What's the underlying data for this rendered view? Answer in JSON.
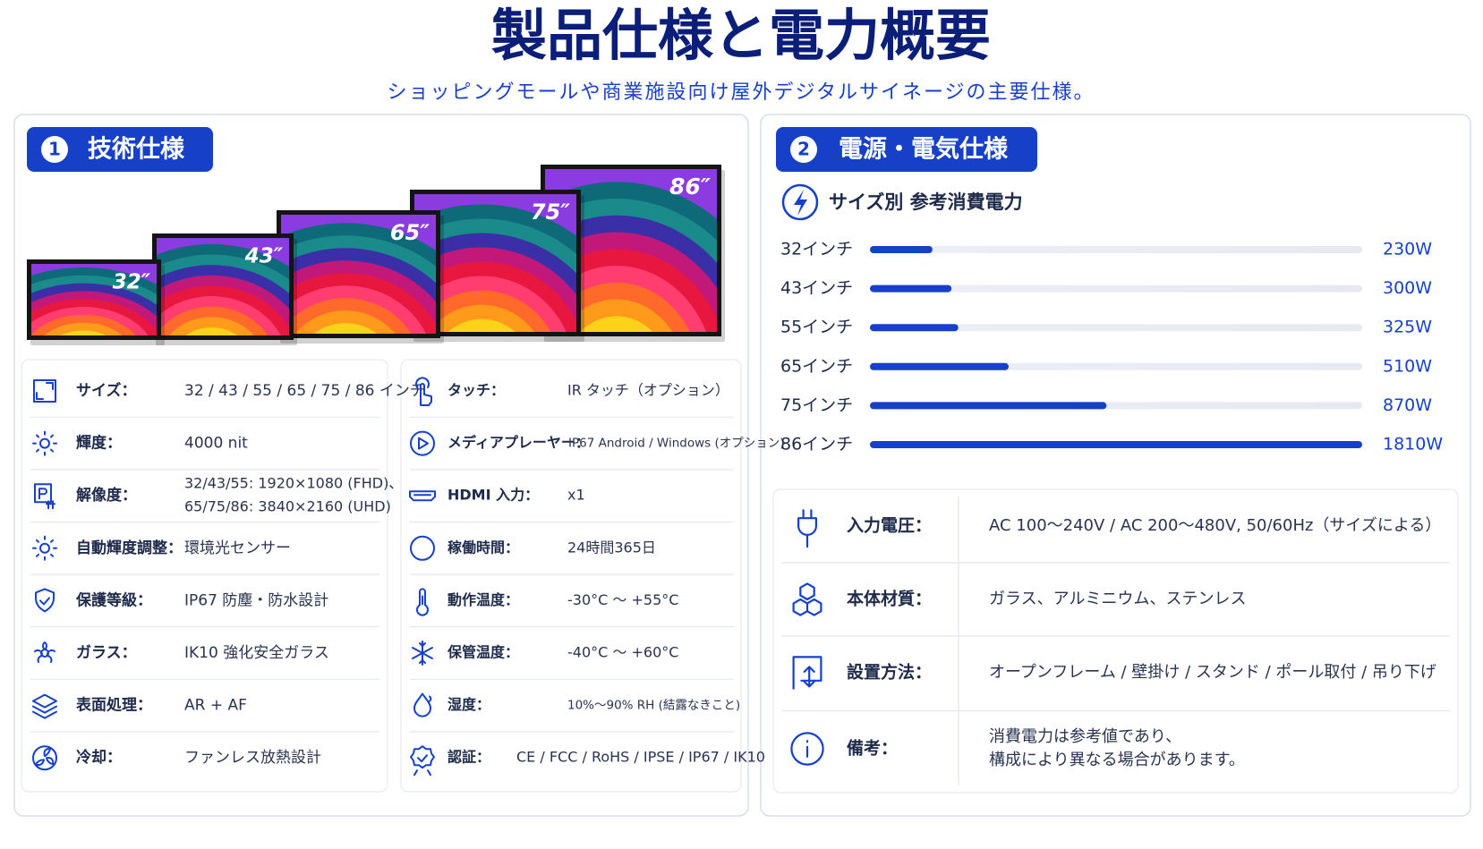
{
  "header": {
    "title": "製品仕様と電力概要",
    "subtitle": "ショッピングモールや商業施設向け屋外デジタルサイネージの主要仕様。"
  },
  "technical_specs": {
    "number": "1",
    "title": "技術仕様",
    "monitors": [
      "32″",
      "43″",
      "65″",
      "75″",
      "86″"
    ],
    "left_rows": [
      {
        "label": "サイズ：",
        "value": [
          "32 / 43 / 55 / 65 / 75 / 86 インチ"
        ]
      },
      {
        "label": "輝度：",
        "value": [
          "4000 nit"
        ]
      },
      {
        "label": "解像度：",
        "value": [
          "32/43/55: 1920×1080 (FHD)、",
          "65/75/86: 3840×2160 (UHD)"
        ]
      },
      {
        "label": "自動輝度調整：",
        "value": [
          "環境光センサー"
        ]
      },
      {
        "label": "保護等級：",
        "value": [
          "IP67 防塵・防水設計"
        ]
      },
      {
        "label": "ガラス：",
        "value": [
          "IK10 強化安全ガラス"
        ]
      },
      {
        "label": "表面処理：",
        "value": [
          "AR + AF"
        ]
      },
      {
        "label": "冷却：",
        "value": [
          "ファンレス放熱設計"
        ]
      }
    ],
    "right_rows": [
      {
        "label": "タッチ：",
        "value": [
          "IR タッチ（オプション）"
        ]
      },
      {
        "label": "メディアプレーヤー：",
        "value": [
          "IP67 Android / Windows (オプション)"
        ]
      },
      {
        "label": "HDMI 入力：",
        "value": [
          "x1"
        ]
      },
      {
        "label": "稼働時間：",
        "value": [
          "24時間365日"
        ]
      },
      {
        "label": "動作温度：",
        "value": [
          "-30°C ～ +55°C"
        ]
      },
      {
        "label": "保管温度：",
        "value": [
          "-40°C ～ +60°C"
        ]
      },
      {
        "label": "湿度：",
        "value": [
          "10%～90% RH (結露なきこと)"
        ]
      },
      {
        "label": "認証：",
        "value": [
          "CE / FCC / RoHS / IPSE / IP67 / IK10"
        ]
      }
    ]
  },
  "power_specs": {
    "number": "2",
    "title": "電源・電気仕様",
    "rows": [
      {
        "label": "入力電圧：",
        "value": [
          "AC 100～240V / AC 200～480V, 50/60Hz（サイズによる）"
        ]
      },
      {
        "label": "本体材質：",
        "value": [
          "ガラス、アルミニウム、ステンレス"
        ]
      },
      {
        "label": "設置方法：",
        "value": [
          "オープンフレーム / 壁掛け / スタンド / ポール取付 / 吊り下げ"
        ]
      },
      {
        "label": "備考：",
        "value": [
          "消費電力は参考値であり、",
          "構成により異なる場合があります。"
        ]
      }
    ]
  },
  "chart_data": {
    "type": "bar",
    "orientation": "horizontal",
    "title": "サイズ別 参考消費電力",
    "categories": [
      "32インチ",
      "43インチ",
      "55インチ",
      "65インチ",
      "75インチ",
      "86インチ"
    ],
    "values": [
      230,
      300,
      325,
      510,
      870,
      1810
    ],
    "value_labels": [
      "230W",
      "300W",
      "325W",
      "510W",
      "870W",
      "1810W"
    ],
    "color": "#1740c8"
  }
}
